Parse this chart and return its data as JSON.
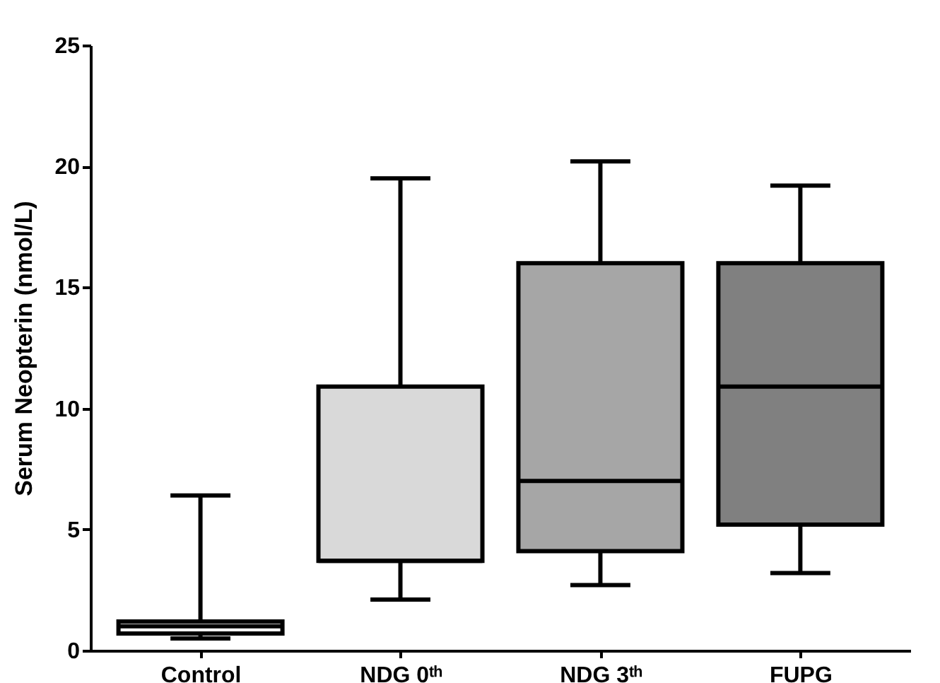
{
  "chart_data": {
    "type": "box",
    "ylabel": "Serum Neopterin (nmol/L)",
    "categories": [
      "Control",
      "NDG 0ᵗʰ",
      "NDG 3ᵗʰ",
      "FUPG"
    ],
    "boxes": [
      {
        "low": 0.5,
        "q1": 0.7,
        "median": 1.0,
        "q3": 1.2,
        "high": 6.4
      },
      {
        "low": 2.1,
        "q1": 3.7,
        "median": 3.7,
        "q3": 10.9,
        "high": 19.5
      },
      {
        "low": 2.7,
        "q1": 4.1,
        "median": 7.0,
        "q3": 16.0,
        "high": 20.2
      },
      {
        "low": 3.2,
        "q1": 5.2,
        "median": 10.9,
        "q3": 16.0,
        "high": 19.2
      }
    ],
    "colors": [
      "#ffffff",
      "#d9d9d9",
      "#a6a6a6",
      "#808080"
    ],
    "ylim": [
      0,
      25
    ],
    "yticks": [
      0,
      5,
      10,
      15,
      20,
      25
    ],
    "grid": false
  }
}
